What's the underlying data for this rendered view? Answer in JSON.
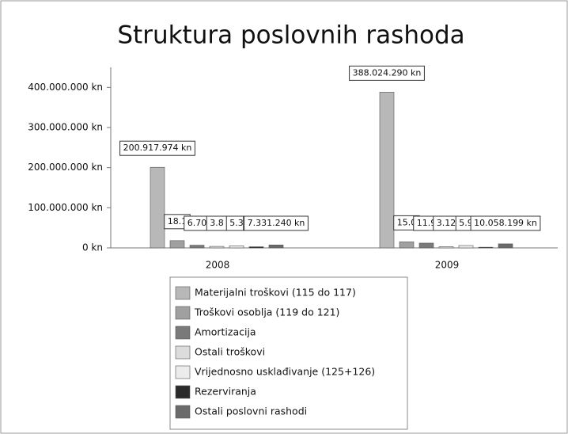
{
  "chart_data": {
    "type": "bar",
    "title": "Struktura poslovnih rashoda",
    "categories": [
      "2008",
      "2009"
    ],
    "series": [
      {
        "name": "Materijalni troškovi (115 do 117)",
        "color": "#b8b8b8",
        "values": [
          200917974,
          388024290
        ],
        "value_labels": [
          "200.917.974 kn",
          "388.024.290 kn"
        ]
      },
      {
        "name": "Troškovi osoblja (119 do 121)",
        "color": "#a0a0a0",
        "values": [
          18100000,
          15000000
        ],
        "value_labels": [
          "18.1",
          "15.0"
        ]
      },
      {
        "name": "Amortizacija",
        "color": "#7a7a7a",
        "values": [
          6700000,
          11900000
        ],
        "value_labels": [
          "6.70",
          "11.9"
        ]
      },
      {
        "name": "Ostali troškovi",
        "color": "#dcdcdc",
        "values": [
          3800000,
          3120000
        ],
        "value_labels": [
          "3.8",
          "3.12"
        ]
      },
      {
        "name": "Vrijednosno usklađivanje (125+126)",
        "color": "#ececec",
        "values": [
          5300000,
          5900000
        ],
        "value_labels": [
          "5.3",
          "5.9"
        ]
      },
      {
        "name": "Rezerviranja",
        "color": "#2a2a2a",
        "values": [
          2800000,
          1700000
        ],
        "value_labels": [
          "2.80",
          "1.7"
        ]
      },
      {
        "name": "Ostali poslovni rashodi",
        "color": "#6a6a6a",
        "values": [
          7331240,
          10058199
        ],
        "value_labels": [
          "7.331.240 kn",
          "10.058.199 kn"
        ]
      }
    ],
    "ylim": [
      0,
      450000000
    ],
    "yticks": [
      {
        "value": 0,
        "label": "0 kn"
      },
      {
        "value": 100000000,
        "label": "100.000.000 kn"
      },
      {
        "value": 200000000,
        "label": "200.000.000 kn"
      },
      {
        "value": 300000000,
        "label": "300.000.000 kn"
      },
      {
        "value": 400000000,
        "label": "400.000.000 kn"
      }
    ]
  }
}
